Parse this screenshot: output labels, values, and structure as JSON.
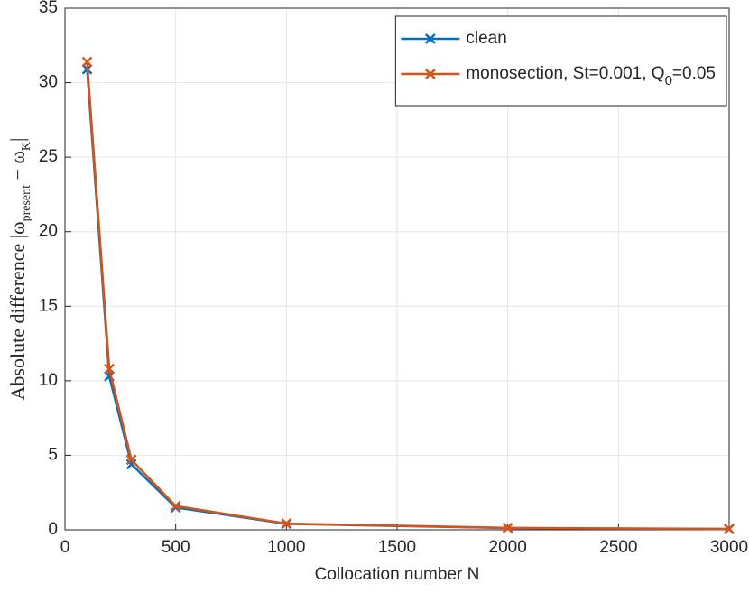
{
  "chart_data": {
    "type": "line",
    "xlabel": "Collocation number N",
    "ylabel": [
      "Absolute difference |ω",
      "present",
      " − ω",
      "K",
      "|"
    ],
    "x": [
      100,
      200,
      300,
      500,
      1000,
      2000,
      3000
    ],
    "series": [
      {
        "name": "clean",
        "color": "#0072bd",
        "values": [
          30.9,
          10.3,
          4.4,
          1.5,
          0.4,
          0.12,
          0.05
        ]
      },
      {
        "name": [
          "monosection, St=0.001, Q",
          "0",
          "=0.05"
        ],
        "color": "#d95319",
        "values": [
          31.4,
          10.8,
          4.7,
          1.6,
          0.42,
          0.13,
          0.06
        ]
      }
    ],
    "xlim": [
      0,
      3000
    ],
    "xticks": [
      0,
      500,
      1000,
      1500,
      2000,
      2500,
      3000
    ],
    "ylim": [
      0,
      35
    ],
    "yticks": [
      0,
      5,
      10,
      15,
      20,
      25,
      30,
      35
    ],
    "grid": true,
    "legend": "northeast"
  }
}
